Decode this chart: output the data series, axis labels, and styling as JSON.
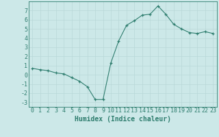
{
  "x": [
    0,
    1,
    2,
    3,
    4,
    5,
    6,
    7,
    8,
    9,
    10,
    11,
    12,
    13,
    14,
    15,
    16,
    17,
    18,
    19,
    20,
    21,
    22,
    23
  ],
  "y": [
    0.7,
    0.55,
    0.45,
    0.2,
    0.1,
    -0.3,
    -0.7,
    -1.3,
    -2.7,
    -2.7,
    1.3,
    3.7,
    5.4,
    5.9,
    6.5,
    6.6,
    7.5,
    6.6,
    5.5,
    5.0,
    4.6,
    4.5,
    4.7,
    4.5
  ],
  "xlabel": "Humidex (Indice chaleur)",
  "ylim": [
    -3.5,
    8.0
  ],
  "xlim": [
    -0.5,
    23.5
  ],
  "yticks": [
    -3,
    -2,
    -1,
    0,
    1,
    2,
    3,
    4,
    5,
    6,
    7
  ],
  "xticks": [
    0,
    1,
    2,
    3,
    4,
    5,
    6,
    7,
    8,
    9,
    10,
    11,
    12,
    13,
    14,
    15,
    16,
    17,
    18,
    19,
    20,
    21,
    22,
    23
  ],
  "line_color": "#2e7d6e",
  "marker": "+",
  "bg_color": "#cce8e8",
  "grid_color": "#b8d8d8",
  "xlabel_fontsize": 7,
  "tick_fontsize": 6
}
